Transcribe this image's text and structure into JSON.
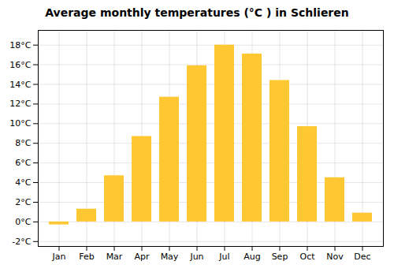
{
  "chart_data": {
    "type": "bar",
    "title": "Average monthly temperatures (°C ) in Schlieren",
    "categories": [
      "Jan",
      "Feb",
      "Mar",
      "Apr",
      "May",
      "Jun",
      "Jul",
      "Aug",
      "Sep",
      "Oct",
      "Nov",
      "Dec"
    ],
    "values": [
      -0.3,
      1.3,
      4.7,
      8.7,
      12.7,
      15.9,
      18.0,
      17.1,
      14.4,
      9.7,
      4.5,
      0.9
    ],
    "color": "#FFC832",
    "ylim": [
      -2.5,
      19.5
    ],
    "yticks": [
      {
        "value": -2,
        "label": "-2°C"
      },
      {
        "value": 0,
        "label": "0°C"
      },
      {
        "value": 2,
        "label": "2°C"
      },
      {
        "value": 4,
        "label": "4°C"
      },
      {
        "value": 6,
        "label": "6°C"
      },
      {
        "value": 8,
        "label": "8°C"
      },
      {
        "value": 10,
        "label": "10°C"
      },
      {
        "value": 12,
        "label": "12°C"
      },
      {
        "value": 14,
        "label": "14°C"
      },
      {
        "value": 16,
        "label": "16°C"
      },
      {
        "value": 18,
        "label": "18°C"
      }
    ],
    "grid": true
  }
}
